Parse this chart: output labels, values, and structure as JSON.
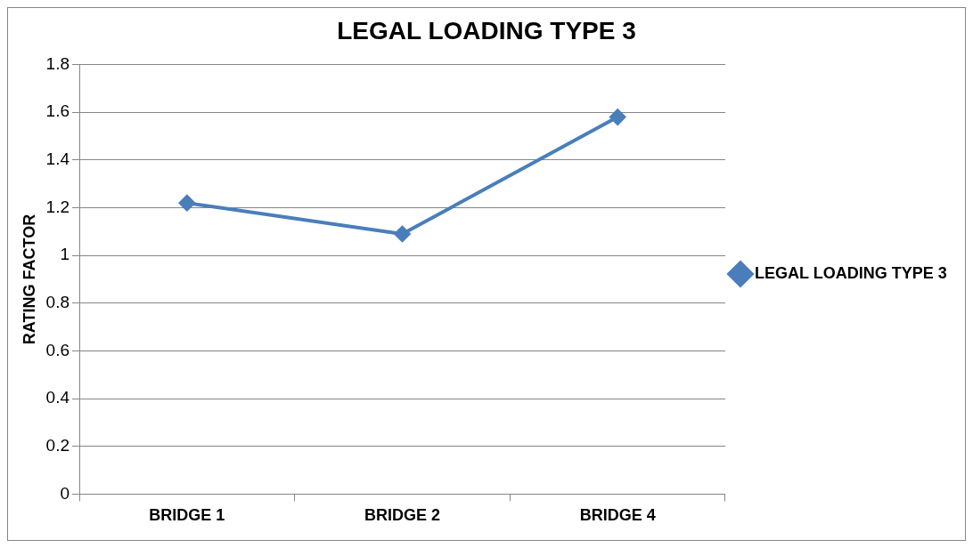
{
  "chart_data": {
    "type": "line",
    "title": "LEGAL LOADING TYPE 3",
    "ylabel": "RATING FACTOR",
    "categories": [
      "BRIDGE 1",
      "BRIDGE 2",
      "BRIDGE 4"
    ],
    "series": [
      {
        "name": "LEGAL LOADING TYPE 3",
        "color": "#4a7ebb",
        "values": [
          1.22,
          1.09,
          1.58
        ]
      }
    ],
    "ylim": [
      0,
      1.8
    ],
    "yticks": [
      0,
      0.2,
      0.4,
      0.6,
      0.8,
      1,
      1.2,
      1.4,
      1.6,
      1.8
    ],
    "grid": "y",
    "legend": "right",
    "marker": "diamond",
    "line_style": "solid"
  }
}
